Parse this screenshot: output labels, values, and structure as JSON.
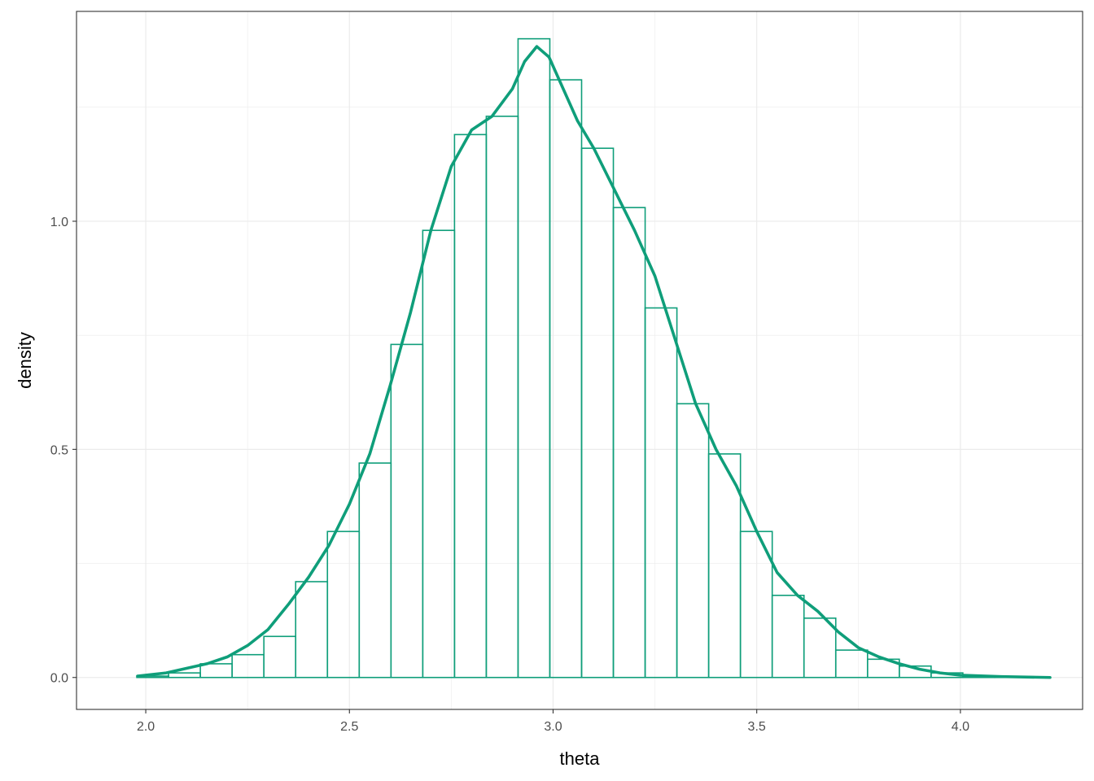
{
  "chart_data": {
    "type": "histogram",
    "title": "",
    "xlabel": "theta",
    "ylabel": "density",
    "xlim": [
      1.83,
      4.3
    ],
    "ylim": [
      -0.07,
      1.46
    ],
    "x_ticks": [
      2.0,
      2.5,
      3.0,
      3.5,
      4.0
    ],
    "x_tick_labels": [
      "2.0",
      "2.5",
      "3.0",
      "3.5",
      "4.0"
    ],
    "y_ticks": [
      0.0,
      0.5,
      1.0
    ],
    "y_tick_labels": [
      "0.0",
      "0.5",
      "1.0"
    ],
    "grid": true,
    "legend": "none",
    "colors": {
      "series": "#0f9e7a",
      "grid": "#ebebeb",
      "border": "#333333",
      "tick_text": "#4d4d4d"
    },
    "histogram": {
      "bin_edges": [
        1.9,
        1.978,
        2.056,
        2.134,
        2.212,
        2.29,
        2.368,
        2.446,
        2.524,
        2.602,
        2.68,
        2.758,
        2.836,
        2.914,
        2.992,
        3.07,
        3.148,
        3.226,
        3.304,
        3.382,
        3.46,
        3.538,
        3.616,
        3.694,
        3.772,
        3.85,
        3.928,
        4.006,
        4.084,
        4.162,
        4.22
      ],
      "densities": [
        0.0,
        0.003,
        0.01,
        0.03,
        0.05,
        0.09,
        0.21,
        0.32,
        0.47,
        0.73,
        0.98,
        1.19,
        1.23,
        1.4,
        1.31,
        1.16,
        1.03,
        0.81,
        0.6,
        0.49,
        0.32,
        0.18,
        0.13,
        0.06,
        0.04,
        0.025,
        0.01,
        0.002,
        0.001,
        0.0
      ]
    },
    "density_curve": {
      "x": [
        1.98,
        2.05,
        2.1,
        2.15,
        2.2,
        2.25,
        2.3,
        2.35,
        2.4,
        2.45,
        2.5,
        2.55,
        2.6,
        2.65,
        2.7,
        2.75,
        2.8,
        2.85,
        2.9,
        2.93,
        2.96,
        2.99,
        3.02,
        3.06,
        3.1,
        3.15,
        3.2,
        3.25,
        3.3,
        3.35,
        3.4,
        3.45,
        3.5,
        3.55,
        3.6,
        3.65,
        3.7,
        3.75,
        3.8,
        3.85,
        3.9,
        3.95,
        4.0,
        4.1,
        4.22
      ],
      "y": [
        0.003,
        0.01,
        0.02,
        0.03,
        0.045,
        0.07,
        0.105,
        0.16,
        0.22,
        0.29,
        0.38,
        0.49,
        0.64,
        0.8,
        0.98,
        1.12,
        1.2,
        1.23,
        1.29,
        1.35,
        1.383,
        1.36,
        1.3,
        1.22,
        1.16,
        1.07,
        0.98,
        0.88,
        0.74,
        0.6,
        0.5,
        0.42,
        0.32,
        0.23,
        0.18,
        0.145,
        0.1,
        0.065,
        0.045,
        0.03,
        0.018,
        0.01,
        0.005,
        0.002,
        0.0
      ]
    }
  }
}
